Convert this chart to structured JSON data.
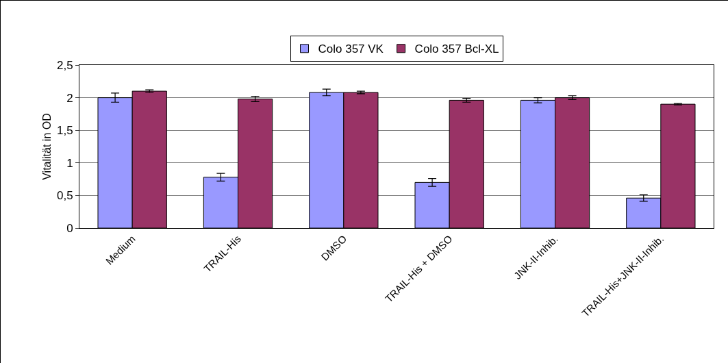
{
  "chart_data": {
    "type": "bar",
    "ylabel": "Vitalität in OD",
    "categories": [
      "Medium",
      "TRAIL-His",
      "DMSO",
      "TRAIL-His + DMSO",
      "JNK-II-Inhib.",
      "TRAIL-His+JNK-II-Inhib."
    ],
    "series": [
      {
        "name": "Colo 357 VK",
        "color": "#9999ff",
        "values": [
          2.0,
          0.78,
          2.08,
          0.7,
          1.96,
          0.46
        ],
        "errors": [
          0.07,
          0.06,
          0.05,
          0.06,
          0.04,
          0.05
        ]
      },
      {
        "name": "Colo 357 Bcl-XL",
        "color": "#993366",
        "values": [
          2.1,
          1.98,
          2.08,
          1.96,
          2.0,
          1.9
        ],
        "errors": [
          0.02,
          0.04,
          0.02,
          0.03,
          0.03,
          0.01
        ]
      }
    ],
    "ylim": [
      0,
      2.5
    ],
    "yticks": [
      0,
      {
        "value": 0.5,
        "label": "0,5"
      },
      1,
      {
        "value": 1.5,
        "label": "1,5"
      },
      2,
      {
        "value": 2.5,
        "label": "2,5"
      }
    ],
    "grid": "y",
    "legend": "top"
  }
}
